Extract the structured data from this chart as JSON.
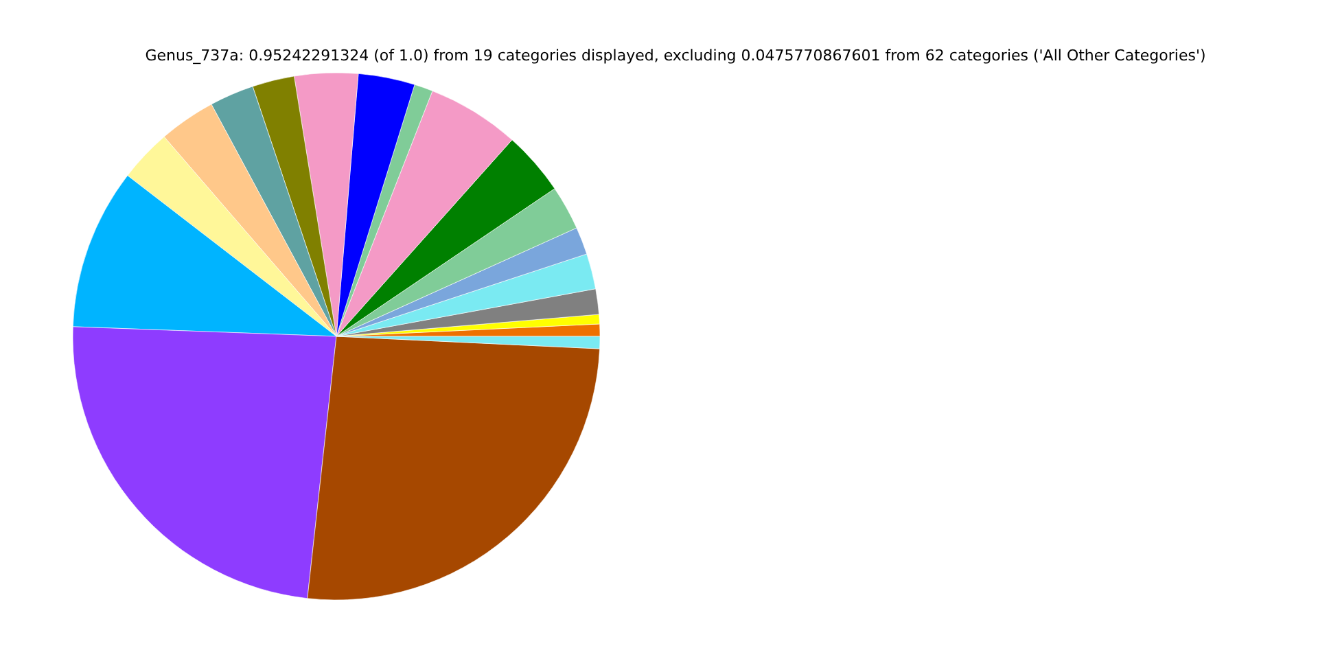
{
  "chart_data": {
    "type": "pie",
    "title": "Genus_737a: 0.95242291324 (of 1.0) from 19 categories displayed, excluding 0.0475770867601 from 62 categories ('All Other Categories')",
    "categories": [
      null,
      null,
      null,
      null,
      null,
      null,
      null,
      null,
      null,
      null,
      null,
      null,
      null,
      null,
      null,
      null,
      null,
      null,
      null
    ],
    "values": [
      0.75,
      0.58,
      1.56,
      2.17,
      1.69,
      2.72,
      3.92,
      5.67,
      1.14,
      3.47,
      3.89,
      2.58,
      2.72,
      3.47,
      3.22,
      9.86,
      23.83,
      26.0,
      0.75
    ],
    "colors": [
      "#ee7000",
      "#ffff00",
      "#808080",
      "#7aeaf2",
      "#7aa6dc",
      "#80cc98",
      "#008000",
      "#f49ac6",
      "#80cc98",
      "#0000ff",
      "#f49ac6",
      "#808000",
      "#5fa2a2",
      "#ffc88a",
      "#fff799",
      "#00b4ff",
      "#8e3cff",
      "#a64800",
      "#7aeaf2"
    ]
  }
}
